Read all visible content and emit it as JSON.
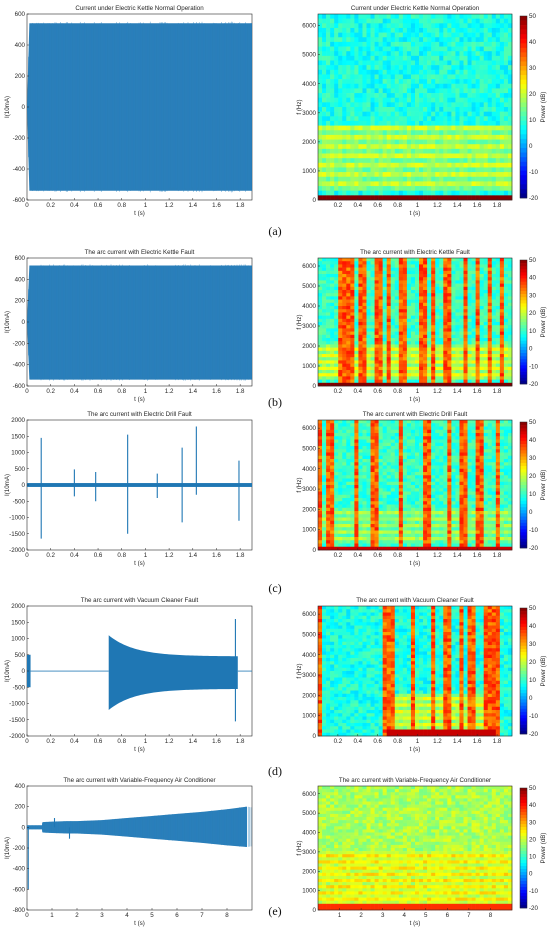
{
  "figure": {
    "rows": [
      {
        "label": "(a)",
        "time_plot": {
          "title": "Current under Electric Kettle Normal Operation",
          "xlabel": "t (s)",
          "ylabel": "I(10mA)",
          "xlim": [
            0,
            1.9
          ],
          "ylim": [
            -600,
            600
          ],
          "xticks": [
            0,
            0.2,
            0.4,
            0.6,
            0.8,
            1,
            1.2,
            1.4,
            1.6,
            1.8
          ],
          "yticks": [
            -600,
            -400,
            -200,
            0,
            200,
            400,
            600
          ]
        },
        "spectrogram": {
          "title": "Current under Electric Kettle Normal Operation",
          "xlabel": "t (s)",
          "ylabel": "f (Hz)",
          "colorbar_label": "Power (dB)",
          "xlim": [
            0,
            1.95
          ],
          "ylim": [
            0,
            6400
          ],
          "xticks": [
            0.2,
            0.4,
            0.6,
            0.8,
            1,
            1.2,
            1.4,
            1.6,
            1.8
          ],
          "yticks": [
            0,
            1000,
            2000,
            3000,
            4000,
            5000,
            6000
          ],
          "cticks": [
            -20,
            -10,
            0,
            10,
            20,
            30,
            40,
            50
          ]
        }
      },
      {
        "label": "(b)",
        "time_plot": {
          "title": "The arc current with Electric Kettle Fault",
          "xlabel": "t (s)",
          "ylabel": "I(10mA)",
          "xlim": [
            0,
            1.9
          ],
          "ylim": [
            -600,
            600
          ],
          "xticks": [
            0,
            0.2,
            0.4,
            0.6,
            0.8,
            1,
            1.2,
            1.4,
            1.6,
            1.8
          ],
          "yticks": [
            -600,
            -400,
            -200,
            0,
            200,
            400,
            600
          ]
        },
        "spectrogram": {
          "title": "The arc current with Electric Kettle Fault",
          "xlabel": "t (s)",
          "ylabel": "f (Hz)",
          "colorbar_label": "Power (dB)",
          "xlim": [
            0,
            1.95
          ],
          "ylim": [
            0,
            6400
          ],
          "xticks": [
            0.2,
            0.4,
            0.6,
            0.8,
            1,
            1.2,
            1.4,
            1.6,
            1.8
          ],
          "yticks": [
            0,
            1000,
            2000,
            3000,
            4000,
            5000,
            6000
          ],
          "cticks": [
            -20,
            -10,
            0,
            10,
            20,
            30,
            40,
            50
          ]
        }
      },
      {
        "label": "(c)",
        "time_plot": {
          "title": "The arc current with Electric Drill Fault",
          "xlabel": "t (s)",
          "ylabel": "I(10mA)",
          "xlim": [
            0,
            1.9
          ],
          "ylim": [
            -2000,
            2000
          ],
          "xticks": [
            0,
            0.2,
            0.4,
            0.6,
            0.8,
            1,
            1.2,
            1.4,
            1.6,
            1.8
          ],
          "yticks": [
            -2000,
            -1500,
            -1000,
            -500,
            0,
            500,
            1000,
            1500,
            2000
          ]
        },
        "spectrogram": {
          "title": "The arc current with Electric Drill Fault",
          "xlabel": "t (s)",
          "ylabel": "f (Hz)",
          "colorbar_label": "Power (dB)",
          "xlim": [
            0,
            1.95
          ],
          "ylim": [
            0,
            6400
          ],
          "xticks": [
            0.2,
            0.4,
            0.6,
            0.8,
            1,
            1.2,
            1.4,
            1.6,
            1.8
          ],
          "yticks": [
            0,
            1000,
            2000,
            3000,
            4000,
            5000,
            6000
          ],
          "cticks": [
            -20,
            -10,
            0,
            10,
            20,
            30,
            40,
            50
          ]
        }
      },
      {
        "label": "(d)",
        "time_plot": {
          "title": "The arc current with Vacuum Cleaner Fault",
          "xlabel": "t (s)",
          "ylabel": "I(10mA)",
          "xlim": [
            0,
            1.9
          ],
          "ylim": [
            -2000,
            2000
          ],
          "xticks": [
            0,
            0.2,
            0.4,
            0.6,
            0.8,
            1,
            1.2,
            1.4,
            1.6,
            1.8
          ],
          "yticks": [
            -2000,
            -1500,
            -1000,
            -500,
            0,
            500,
            1000,
            1500,
            2000
          ]
        },
        "spectrogram": {
          "title": "The arc current with Vacuum Cleaner Fault",
          "xlabel": "t (s)",
          "ylabel": "f (Hz)",
          "colorbar_label": "Power (dB)",
          "xlim": [
            0,
            1.95
          ],
          "ylim": [
            0,
            6400
          ],
          "xticks": [
            0.2,
            0.4,
            0.6,
            0.8,
            1,
            1.2,
            1.4,
            1.6,
            1.8
          ],
          "yticks": [
            0,
            1000,
            2000,
            3000,
            4000,
            5000,
            6000
          ],
          "cticks": [
            -20,
            -10,
            0,
            10,
            20,
            30,
            40,
            50
          ]
        }
      },
      {
        "label": "(e)",
        "time_plot": {
          "title": "The arc current with Variable-Frequency Air Conditioner",
          "xlabel": "t (s)",
          "ylabel": "I(10mA)",
          "xlim": [
            0,
            9
          ],
          "ylim": [
            -800,
            400
          ],
          "xticks": [
            0,
            1,
            2,
            3,
            4,
            5,
            6,
            7,
            8
          ],
          "yticks": [
            -800,
            -600,
            -400,
            -200,
            0,
            200,
            400
          ]
        },
        "spectrogram": {
          "title": "The arc current with Variable-Frequency Air Conditioner",
          "xlabel": "t (s)",
          "ylabel": "f (Hz)",
          "colorbar_label": "Power (dB)",
          "xlim": [
            0,
            9
          ],
          "ylim": [
            0,
            6400
          ],
          "xticks": [
            1,
            2,
            3,
            4,
            5,
            6,
            7,
            8
          ],
          "yticks": [
            0,
            1000,
            2000,
            3000,
            4000,
            5000,
            6000
          ],
          "cticks": [
            -20,
            -10,
            0,
            10,
            20,
            30,
            40,
            50
          ]
        }
      }
    ]
  },
  "chart_data": [
    {
      "type": "area",
      "panel": "(a) left",
      "title": "Current under Electric Kettle Normal Operation",
      "xlabel": "t (s)",
      "ylabel": "I(10mA)",
      "xlim": [
        0,
        1.9
      ],
      "ylim": [
        -600,
        600
      ],
      "color": "#1f77b4",
      "envelope": {
        "t": [
          0,
          0.02,
          1.9
        ],
        "upper": [
          0,
          540,
          540
        ],
        "lower": [
          0,
          -540,
          -540
        ]
      }
    },
    {
      "type": "heatmap",
      "panel": "(a) right",
      "title": "Current under Electric Kettle Normal Operation",
      "xlabel": "t (s)",
      "ylabel": "f (Hz)",
      "colorbar_label": "Power (dB)",
      "xlim": [
        0,
        1.95
      ],
      "ylim": [
        0,
        6400
      ],
      "clim": [
        -20,
        50
      ],
      "background_db": 8,
      "bands": [
        {
          "f0": 0,
          "f1": 200,
          "db": 50
        },
        {
          "f0": 400,
          "f1": 2500,
          "db": 20,
          "harmonics": true
        }
      ],
      "event_times": []
    },
    {
      "type": "area",
      "panel": "(b) left",
      "title": "The arc current with Electric Kettle Fault",
      "xlabel": "t (s)",
      "ylabel": "I(10mA)",
      "xlim": [
        0,
        1.9
      ],
      "ylim": [
        -600,
        600
      ],
      "color": "#1f77b4",
      "envelope": {
        "t": [
          0,
          0.02,
          1.9
        ],
        "upper": [
          0,
          530,
          530
        ],
        "lower": [
          0,
          -540,
          -540
        ]
      }
    },
    {
      "type": "heatmap",
      "panel": "(b) right",
      "title": "The arc current with Electric Kettle Fault",
      "xlabel": "t (s)",
      "ylabel": "f (Hz)",
      "colorbar_label": "Power (dB)",
      "xlim": [
        0,
        1.95
      ],
      "ylim": [
        0,
        6400
      ],
      "clim": [
        -20,
        50
      ],
      "background_db": 10,
      "bands": [
        {
          "f0": 0,
          "f1": 200,
          "db": 50
        },
        {
          "f0": 400,
          "f1": 2000,
          "db": 22,
          "harmonics": true
        }
      ],
      "event_times": [
        0.25,
        0.32,
        0.45,
        0.6,
        0.72,
        0.85,
        1.05,
        1.15,
        1.3,
        1.48,
        1.6,
        1.72,
        1.85
      ]
    },
    {
      "type": "line",
      "panel": "(c) left",
      "title": "The arc current with Electric Drill Fault",
      "xlabel": "t (s)",
      "ylabel": "I(10mA)",
      "xlim": [
        0,
        1.9
      ],
      "ylim": [
        -2000,
        2000
      ],
      "color": "#1f77b4",
      "baseline_amplitude": 60,
      "spikes": [
        {
          "t": 0.12,
          "max": 1450,
          "min": -1650
        },
        {
          "t": 0.4,
          "max": 480,
          "min": -350
        },
        {
          "t": 0.58,
          "max": 400,
          "min": -500
        },
        {
          "t": 0.85,
          "max": 1550,
          "min": -1500
        },
        {
          "t": 1.1,
          "max": 350,
          "min": -400
        },
        {
          "t": 1.31,
          "max": 1150,
          "min": -1150
        },
        {
          "t": 1.43,
          "max": 1800,
          "min": -300
        },
        {
          "t": 1.79,
          "max": 750,
          "min": -1100
        }
      ]
    },
    {
      "type": "heatmap",
      "panel": "(c) right",
      "title": "The arc current with Electric Drill Fault",
      "xlabel": "t (s)",
      "ylabel": "f (Hz)",
      "colorbar_label": "Power (dB)",
      "xlim": [
        0,
        1.95
      ],
      "ylim": [
        0,
        6400
      ],
      "clim": [
        -20,
        50
      ],
      "background_db": 10,
      "bands": [
        {
          "f0": 0,
          "f1": 200,
          "db": 45
        },
        {
          "f0": 400,
          "f1": 2000,
          "db": 18,
          "harmonics": true
        }
      ],
      "event_times": [
        0.03,
        0.12,
        0.38,
        0.57,
        0.84,
        1.1,
        1.31,
        1.46,
        1.63,
        1.8
      ]
    },
    {
      "type": "line",
      "panel": "(d) left",
      "title": "The arc current with Vacuum Cleaner Fault",
      "xlabel": "t (s)",
      "ylabel": "I(10mA)",
      "xlim": [
        0,
        1.9
      ],
      "ylim": [
        -2000,
        2000
      ],
      "color": "#1f77b4",
      "segments": [
        {
          "t0": 0.0,
          "t1": 0.03,
          "max": 500,
          "min": -500
        },
        {
          "t0": 0.03,
          "t1": 0.69,
          "max": 10,
          "min": -10
        },
        {
          "t0": 0.69,
          "t1": 1.78,
          "start_max": 1100,
          "start_min": -1200,
          "end_max": 450,
          "end_min": -550
        },
        {
          "t0": 1.78,
          "t1": 1.9,
          "max": 10,
          "min": -10
        }
      ],
      "spikes": [
        {
          "t": 1.76,
          "max": 1600,
          "min": -1550
        }
      ]
    },
    {
      "type": "heatmap",
      "panel": "(d) right",
      "title": "The arc current with Vacuum Cleaner Fault",
      "xlabel": "t (s)",
      "ylabel": "f (Hz)",
      "colorbar_label": "Power (dB)",
      "xlim": [
        0,
        1.95
      ],
      "ylim": [
        0,
        6400
      ],
      "clim": [
        -20,
        50
      ],
      "background_db": 8,
      "bands": [
        {
          "f0": 0,
          "f1": 250,
          "db": 45,
          "t0": 0.69,
          "t1": 1.78
        },
        {
          "f0": 300,
          "f1": 2000,
          "db": 22,
          "t0": 0.69,
          "t1": 1.78,
          "harmonics": true
        }
      ],
      "event_times": [
        0.03,
        0.69,
        0.75,
        0.95,
        1.15,
        1.3,
        1.45,
        1.55,
        1.7,
        1.78
      ]
    },
    {
      "type": "area",
      "panel": "(e) left",
      "title": "The arc current with Variable-Frequency Air Conditioner",
      "xlabel": "t (s)",
      "ylabel": "I(10mA)",
      "xlim": [
        0,
        9
      ],
      "ylim": [
        -800,
        400
      ],
      "color": "#1f77b4",
      "envelope": {
        "t": [
          0.0,
          0.6,
          0.62,
          1.0,
          1.6,
          2.0,
          3.0,
          4.0,
          5.0,
          6.0,
          7.0,
          8.0,
          8.8
        ],
        "upper": [
          20,
          20,
          50,
          55,
          60,
          60,
          70,
          90,
          110,
          130,
          150,
          175,
          200
        ],
        "lower": [
          -20,
          -20,
          -50,
          -55,
          -60,
          -60,
          -70,
          -90,
          -110,
          -130,
          -150,
          -175,
          -190
        ]
      },
      "spikes": [
        {
          "t": 0.05,
          "max": 0,
          "min": -600
        },
        {
          "t": 1.1,
          "max": 90,
          "min": 0
        },
        {
          "t": 1.7,
          "max": 0,
          "min": -110
        }
      ]
    },
    {
      "type": "heatmap",
      "panel": "(e) right",
      "title": "The arc current with Variable-Frequency Air Conditioner",
      "xlabel": "t (s)",
      "ylabel": "f (Hz)",
      "colorbar_label": "Power (dB)",
      "xlim": [
        0,
        9
      ],
      "ylim": [
        0,
        6400
      ],
      "clim": [
        -20,
        50
      ],
      "background_db": 18,
      "bands": [
        {
          "f0": 0,
          "f1": 250,
          "db": 38
        },
        {
          "f0": 300,
          "f1": 3000,
          "db": 25,
          "harmonics": true
        }
      ],
      "event_times": []
    }
  ]
}
